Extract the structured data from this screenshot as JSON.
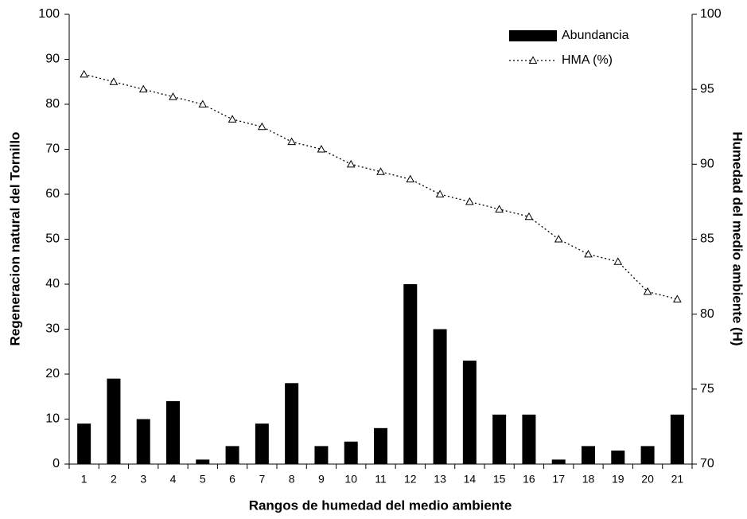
{
  "chart_data": {
    "type": "bar",
    "x_label": "Rangos de humedad del medio ambiente",
    "y_label": "Regeneracion natural del Tornillo",
    "y2_label": "Humedad del medio ambiente (H)",
    "categories": [
      "1",
      "2",
      "3",
      "4",
      "5",
      "6",
      "7",
      "8",
      "9",
      "10",
      "11",
      "12",
      "13",
      "14",
      "15",
      "16",
      "17",
      "18",
      "19",
      "20",
      "21"
    ],
    "series": [
      {
        "name": "Abundancia",
        "type": "bar",
        "color": "#000000",
        "values": [
          9,
          19,
          10,
          14,
          1,
          4,
          9,
          18,
          4,
          5,
          8,
          40,
          30,
          23,
          11,
          11,
          1,
          4,
          3,
          4,
          11
        ]
      },
      {
        "name": "HMA (%)",
        "type": "line",
        "axis": "y2",
        "color": "#000000",
        "values": [
          96,
          95.5,
          95,
          94.5,
          94,
          93,
          92.5,
          91.5,
          91,
          90,
          89.5,
          89,
          88,
          87.5,
          87,
          86.5,
          85,
          84,
          83.5,
          81.5,
          81
        ]
      }
    ],
    "ylim": [
      0,
      100
    ],
    "yticks": [
      0,
      10,
      20,
      30,
      40,
      50,
      60,
      70,
      80,
      90,
      100
    ],
    "y2lim": [
      70,
      100
    ],
    "y2ticks": [
      70,
      75,
      80,
      85,
      90,
      95,
      100
    ],
    "grid": false,
    "legend": "top-right"
  }
}
